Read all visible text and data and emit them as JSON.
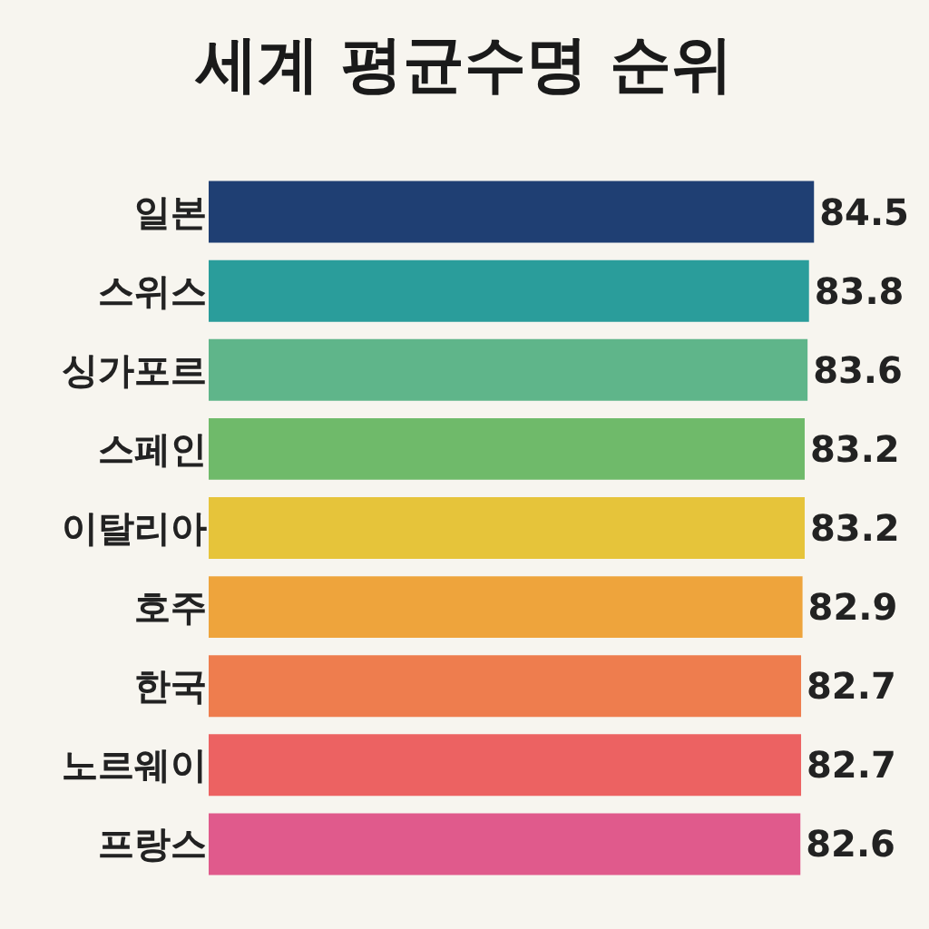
{
  "chart_data": {
    "type": "bar",
    "orientation": "horizontal",
    "title": "세계 평균수명 순위",
    "categories": [
      "일본",
      "스위스",
      "싱가포르",
      "스페인",
      "이탈리아",
      "호주",
      "한국",
      "노르웨이",
      "프랑스"
    ],
    "values": [
      84.5,
      83.8,
      83.6,
      83.2,
      83.2,
      82.9,
      82.7,
      82.7,
      82.6
    ],
    "colors": [
      "#1f3f73",
      "#2a9d9b",
      "#5fb58a",
      "#6fba6a",
      "#e6c43a",
      "#eea43c",
      "#ee7d4e",
      "#ec6262",
      "#e05a8c"
    ],
    "data_labels": true
  }
}
